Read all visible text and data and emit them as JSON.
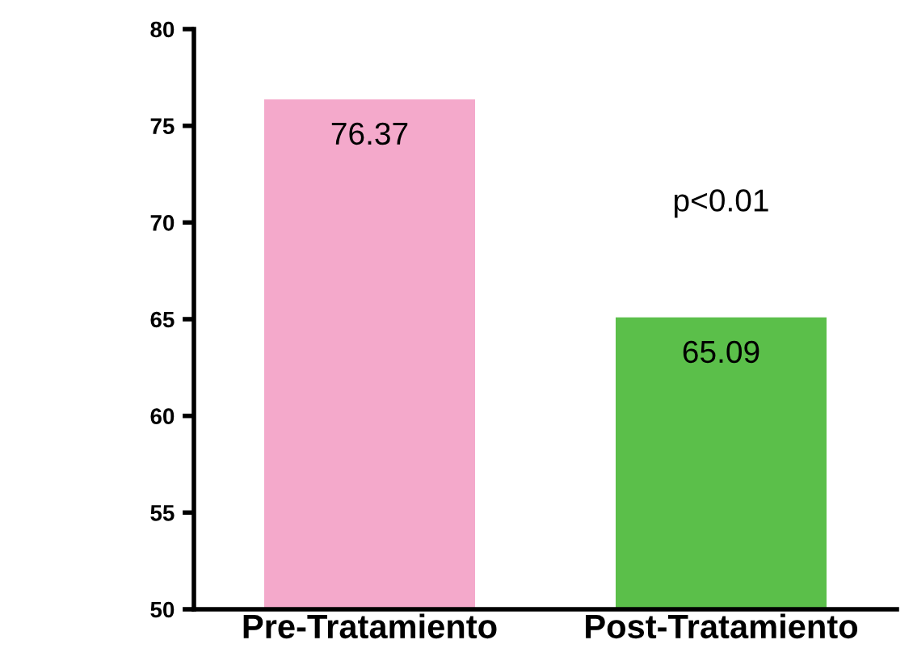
{
  "chart_data": {
    "type": "bar",
    "categories": [
      "Pre-Tratamiento",
      "Post-Tratamiento"
    ],
    "values": [
      76.37,
      65.09
    ],
    "colors": [
      "#f4a9cb",
      "#5bbf4a"
    ],
    "ylim": [
      50,
      80
    ],
    "yticks": [
      50,
      55,
      60,
      65,
      70,
      75,
      80
    ],
    "data_labels": true,
    "grid": false,
    "legend": false,
    "annotations": [
      "p<0.01"
    ]
  }
}
